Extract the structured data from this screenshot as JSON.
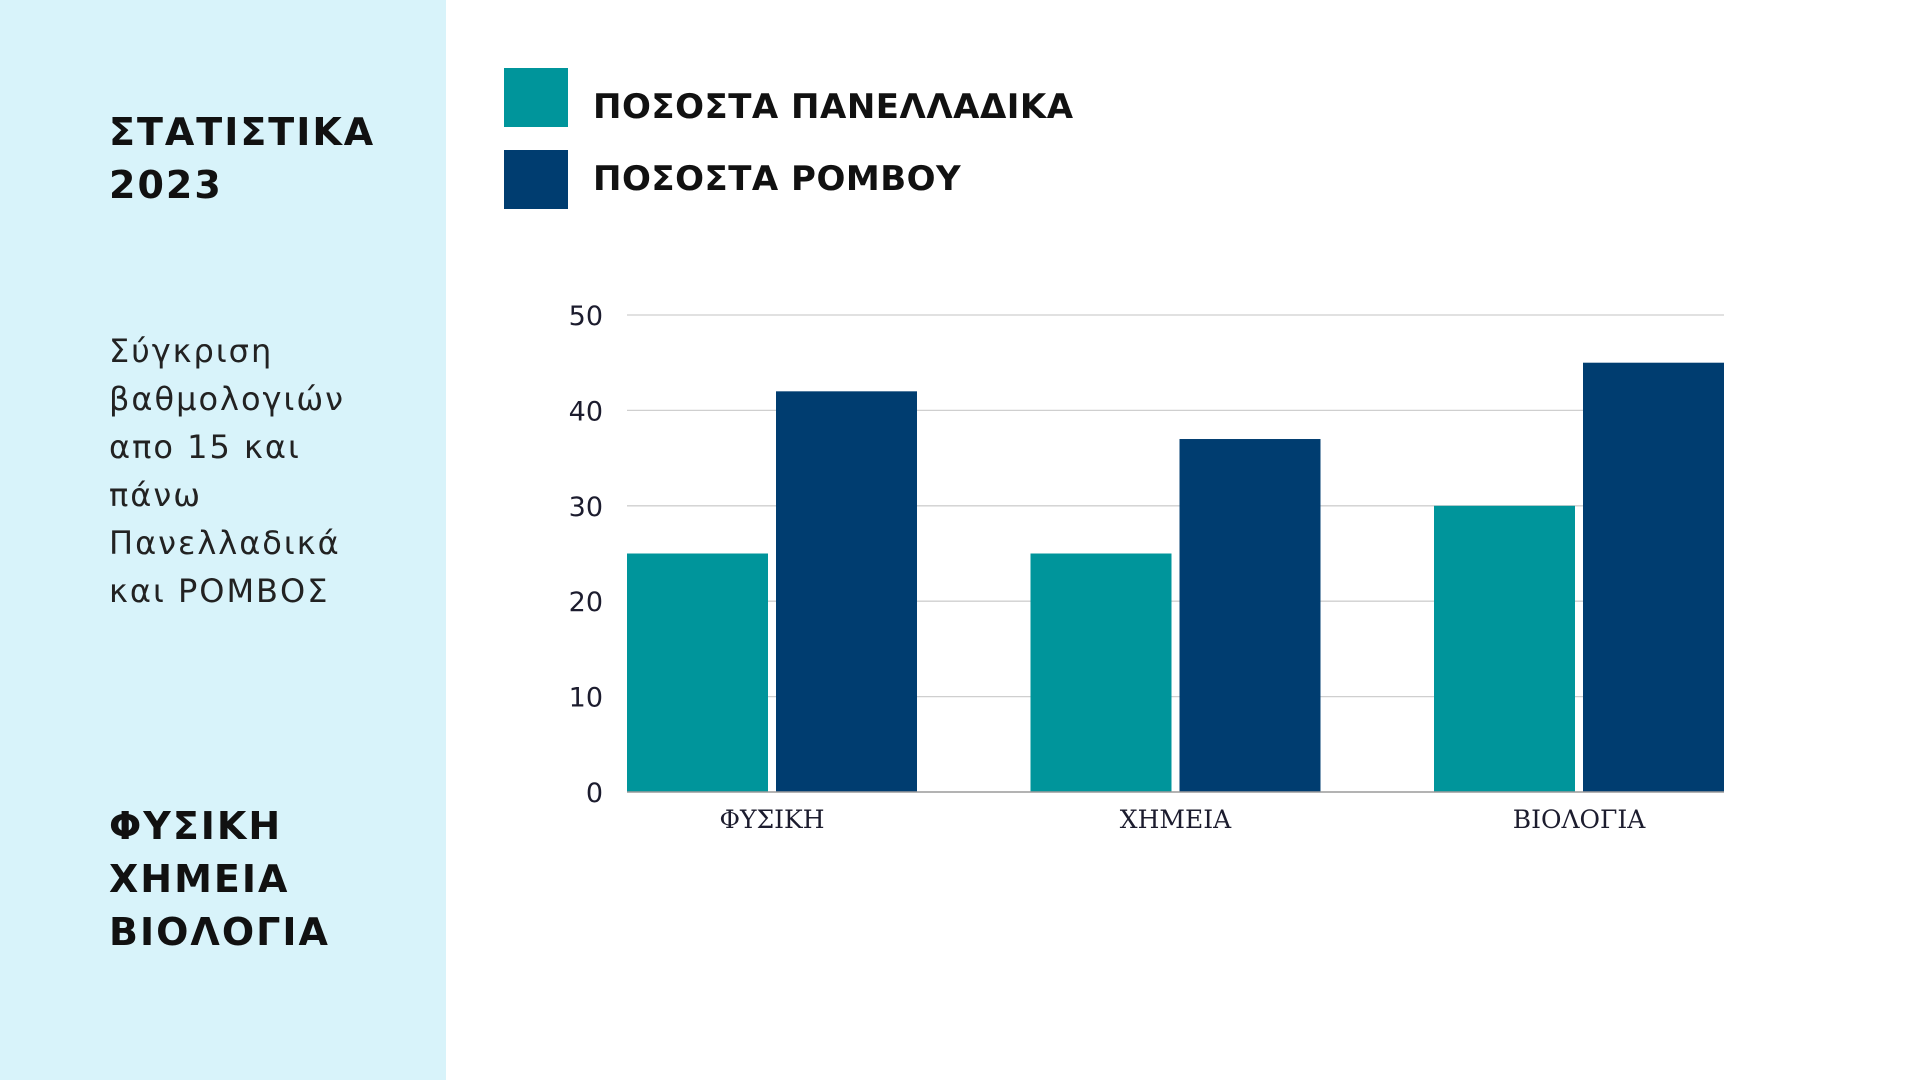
{
  "sidebar": {
    "title_lines": [
      "ΣΤΑΤΙΣΤΙΚΑ",
      "2023"
    ],
    "description_lines": [
      "Σύγκριση",
      "βαθμολογιών",
      "απο 15 και",
      "πάνω",
      "Πανελλαδικά",
      "και ΡΟΜΒΟΣ"
    ],
    "subject_lines": [
      "ΦΥΣΙΚΗ",
      "ΧΗΜΕΙΑ",
      "ΒΙΟΛΟΓΙΑ"
    ]
  },
  "colors": {
    "sidebar_bg": "#d8f3fa",
    "series_1": "#00959b",
    "series_2": "#003d70",
    "gridline": "#cfcfcf",
    "axis_text": "#1c1c2e"
  },
  "chart_data": {
    "type": "bar",
    "categories": [
      "ΦΥΣΙΚΗ",
      "ΧΗΜΕΙΑ",
      "ΒΙΟΛΟΓΙΑ"
    ],
    "series": [
      {
        "name": "ΠΟΣΟΣΤΑ ΠΑΝΕΛΛΑΔΙΚΑ",
        "values": [
          25,
          25,
          30
        ],
        "color": "#00959b"
      },
      {
        "name": "ΠΟΣΟΣΤΑ ΡΟΜΒΟΥ",
        "values": [
          42,
          37,
          45
        ],
        "color": "#003d70"
      }
    ],
    "ylim": [
      0,
      50
    ],
    "yticks": [
      0,
      10,
      20,
      30,
      40,
      50
    ],
    "grid": true,
    "legend_position": "top-left",
    "title": "",
    "xlabel": "",
    "ylabel": ""
  }
}
